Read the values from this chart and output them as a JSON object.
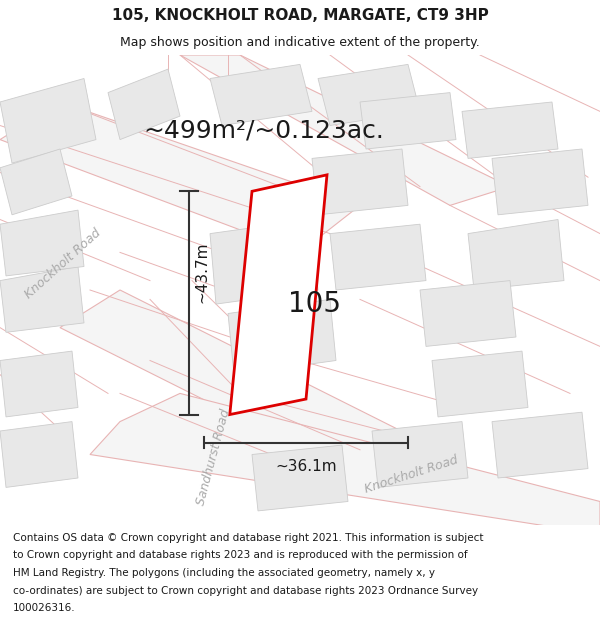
{
  "title_line1": "105, KNOCKHOLT ROAD, MARGATE, CT9 3HP",
  "title_line2": "Map shows position and indicative extent of the property.",
  "area_text": "~499m²/~0.123ac.",
  "label_105": "105",
  "dim_height": "~43.7m",
  "dim_width": "~36.1m",
  "footer_lines": [
    "Contains OS data © Crown copyright and database right 2021. This information is subject",
    "to Crown copyright and database rights 2023 and is reproduced with the permission of",
    "HM Land Registry. The polygons (including the associated geometry, namely x, y",
    "co-ordinates) are subject to Crown copyright and database rights 2023 Ordnance Survey",
    "100026316."
  ],
  "map_bg": "#f7f7f7",
  "road_fill": "#f5f5f5",
  "road_edge": "#e8b4b4",
  "building_fill": "#e8e8e8",
  "building_edge": "#cccccc",
  "plot_fill": "#ffffff",
  "plot_edge": "#dd0000",
  "dim_color": "#333333",
  "text_color": "#1a1a1a",
  "road_label_color": "#aaaaaa",
  "title_color": "#1a1a1a",
  "footer_color": "#1a1a1a",
  "title_fontsize": 11,
  "subtitle_fontsize": 9,
  "area_fontsize": 18,
  "label_fontsize": 20,
  "dim_fontsize": 11,
  "road_label_fontsize": 9,
  "footer_fontsize": 7.5
}
